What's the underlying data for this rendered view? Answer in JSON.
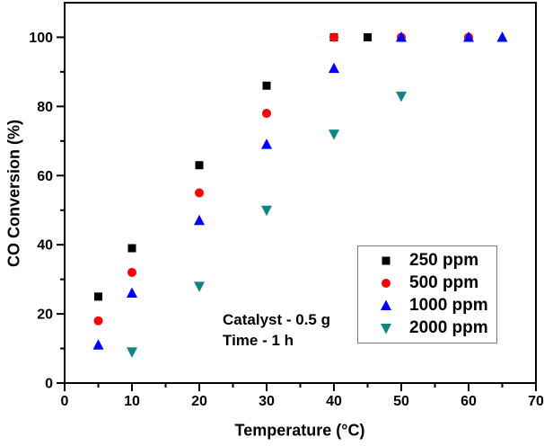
{
  "chart_data": {
    "type": "scatter",
    "title": "",
    "xlabel": "Temperature (°C)",
    "ylabel": "CO Conversion (%)",
    "xlim": [
      0,
      70
    ],
    "ylim": [
      0,
      110
    ],
    "x_major_ticks": [
      0,
      10,
      20,
      30,
      40,
      50,
      60,
      70
    ],
    "x_minor_ticks": [
      5,
      15,
      25,
      35,
      45,
      55,
      65
    ],
    "y_major_ticks": [
      0,
      20,
      40,
      60,
      80,
      100
    ],
    "y_minor_ticks": [
      10,
      30,
      50,
      70,
      90
    ],
    "grid": false,
    "legend_position": "lower-right",
    "annotations": [
      "Catalyst - 0.5 g",
      "Time - 1 h"
    ],
    "series": [
      {
        "name": "250 ppm",
        "marker": "square",
        "color": "#000000",
        "points": [
          [
            5,
            25
          ],
          [
            10,
            39
          ],
          [
            20,
            63
          ],
          [
            30,
            86
          ],
          [
            40,
            100
          ],
          [
            45,
            100
          ]
        ]
      },
      {
        "name": "500 ppm",
        "marker": "circle",
        "color": "#ff0000",
        "points": [
          [
            5,
            18
          ],
          [
            10,
            32
          ],
          [
            20,
            55
          ],
          [
            30,
            78
          ],
          [
            40,
            100
          ],
          [
            50,
            100
          ],
          [
            60,
            100
          ]
        ]
      },
      {
        "name": "1000 ppm",
        "marker": "triangle-up",
        "color": "#0000ff",
        "points": [
          [
            5,
            11
          ],
          [
            10,
            26
          ],
          [
            20,
            47
          ],
          [
            30,
            69
          ],
          [
            40,
            91
          ],
          [
            50,
            100
          ],
          [
            60,
            100
          ],
          [
            65,
            100
          ]
        ]
      },
      {
        "name": "2000 ppm",
        "marker": "triangle-down",
        "color": "#0f8585",
        "points": [
          [
            10,
            9
          ],
          [
            20,
            28
          ],
          [
            30,
            50
          ],
          [
            40,
            72
          ],
          [
            50,
            83
          ]
        ]
      }
    ]
  },
  "layout_colors": {
    "axis": "#000000",
    "background": "#ffffff",
    "legend_border": "#7a7a7a"
  }
}
